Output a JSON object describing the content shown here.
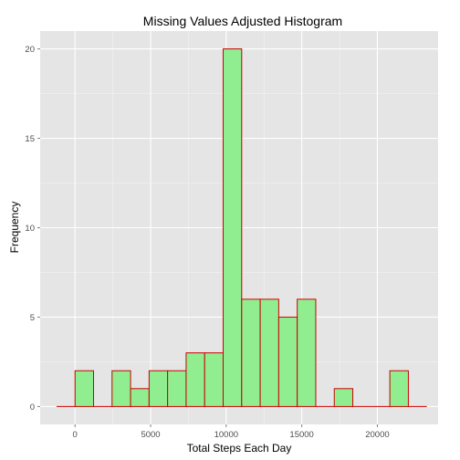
{
  "chart_data": {
    "type": "bar",
    "title": "Missing Values Adjusted Histogram",
    "xlabel": "Total Steps Each Day",
    "ylabel": "Frequency",
    "xlim": [
      -2307,
      24018
    ],
    "ylim": [
      -1,
      21
    ],
    "x_ticks": [
      0,
      5000,
      10000,
      15000,
      20000
    ],
    "x_tick_labels": [
      "0",
      "5000",
      "10000",
      "15000",
      "20000"
    ],
    "y_ticks": [
      0,
      5,
      10,
      15,
      20
    ],
    "y_tick_labels": [
      "0",
      "5",
      "10",
      "15",
      "20"
    ],
    "grid": true,
    "bin_width": 1225,
    "bins": [
      {
        "x0": -1225,
        "x1": 0,
        "count": 0
      },
      {
        "x0": 0,
        "x1": 1225,
        "count": 2
      },
      {
        "x0": 1225,
        "x1": 2450,
        "count": 0
      },
      {
        "x0": 2450,
        "x1": 3675,
        "count": 2
      },
      {
        "x0": 3675,
        "x1": 4900,
        "count": 1
      },
      {
        "x0": 4900,
        "x1": 6125,
        "count": 2
      },
      {
        "x0": 6125,
        "x1": 7350,
        "count": 2
      },
      {
        "x0": 7350,
        "x1": 8575,
        "count": 3
      },
      {
        "x0": 8575,
        "x1": 9800,
        "count": 3
      },
      {
        "x0": 9800,
        "x1": 11025,
        "count": 20
      },
      {
        "x0": 11025,
        "x1": 12250,
        "count": 6
      },
      {
        "x0": 12250,
        "x1": 13475,
        "count": 6
      },
      {
        "x0": 13475,
        "x1": 14700,
        "count": 5
      },
      {
        "x0": 14700,
        "x1": 15925,
        "count": 6
      },
      {
        "x0": 15925,
        "x1": 17150,
        "count": 0
      },
      {
        "x0": 17150,
        "x1": 18375,
        "count": 1
      },
      {
        "x0": 18375,
        "x1": 19600,
        "count": 0
      },
      {
        "x0": 19600,
        "x1": 20825,
        "count": 0
      },
      {
        "x0": 20825,
        "x1": 22050,
        "count": 2
      },
      {
        "x0": 22050,
        "x1": 23275,
        "count": 0
      }
    ],
    "colors": {
      "panel_background": "#e5e5e5",
      "grid_major": "#ffffff",
      "grid_minor": "#f2f2f2",
      "bar_fill": "#90ee90",
      "bar_outline": "#cc0000"
    }
  }
}
